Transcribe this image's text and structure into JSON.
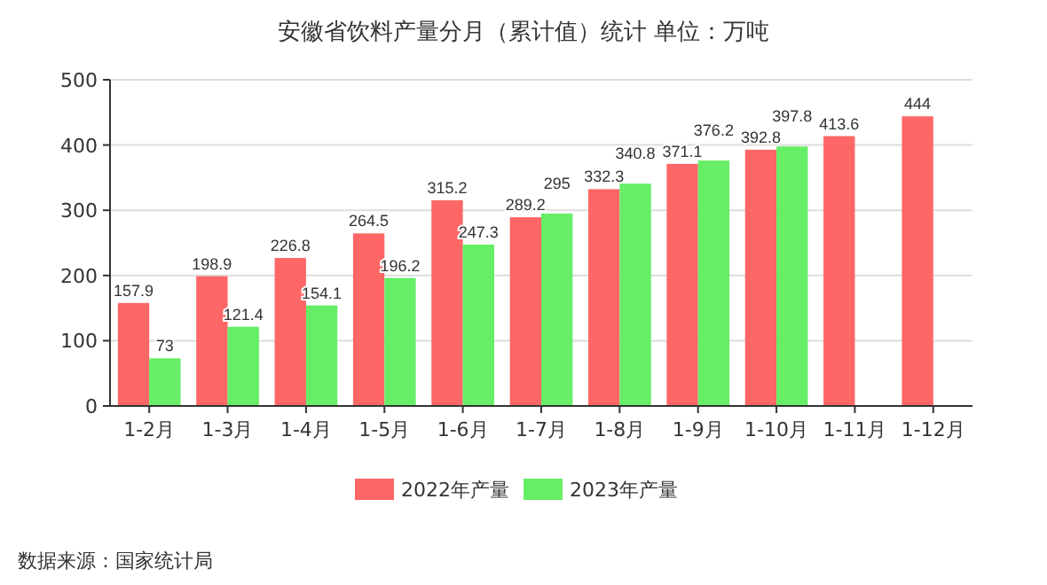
{
  "chart_data": {
    "type": "bar",
    "title": "安徽省饮料产量分月（累计值）统计  单位：万吨",
    "categories": [
      "1-2月",
      "1-3月",
      "1-4月",
      "1-5月",
      "1-6月",
      "1-7月",
      "1-8月",
      "1-9月",
      "1-10月",
      "1-11月",
      "1-12月"
    ],
    "series": [
      {
        "name": "2022年产量",
        "color": "#ff6666",
        "values": [
          157.9,
          198.9,
          226.8,
          264.5,
          315.2,
          289.2,
          332.3,
          371.1,
          392.8,
          413.6,
          444
        ]
      },
      {
        "name": "2023年产量",
        "color": "#66ee66",
        "values": [
          73,
          121.4,
          154.1,
          196.2,
          247.3,
          295,
          340.8,
          376.2,
          397.8,
          null,
          null
        ]
      }
    ],
    "ylim": [
      0,
      500
    ],
    "yticks": [
      0,
      100,
      200,
      300,
      400,
      500
    ],
    "grid": "y",
    "legend": "bottom",
    "data_labels": true,
    "annotations": [
      "数据来源：国家统计局"
    ]
  }
}
